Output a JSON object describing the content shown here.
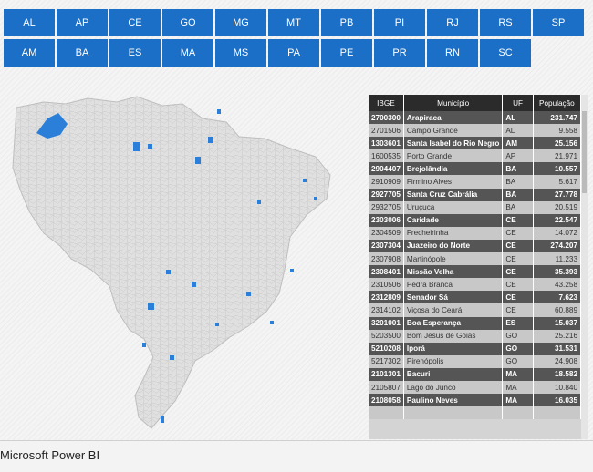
{
  "slicer": {
    "row1": [
      "AL",
      "AP",
      "CE",
      "GO",
      "MG",
      "MT",
      "PB",
      "PI",
      "RJ",
      "RS",
      "SP"
    ],
    "row2": [
      "AM",
      "BA",
      "ES",
      "MA",
      "MS",
      "PA",
      "PE",
      "PR",
      "RN",
      "SC"
    ]
  },
  "table": {
    "headers": [
      "IBGE",
      "Município",
      "UF",
      "População"
    ],
    "rows": [
      {
        "ibge": "2700300",
        "municipio": "Arapiraca",
        "uf": "AL",
        "pop": "231.747",
        "style": "dark"
      },
      {
        "ibge": "2701506",
        "municipio": "Campo Grande",
        "uf": "AL",
        "pop": "9.558",
        "style": "light"
      },
      {
        "ibge": "1303601",
        "municipio": "Santa Isabel do Rio Negro",
        "uf": "AM",
        "pop": "25.156",
        "style": "dark"
      },
      {
        "ibge": "1600535",
        "municipio": "Porto Grande",
        "uf": "AP",
        "pop": "21.971",
        "style": "light"
      },
      {
        "ibge": "2904407",
        "municipio": "Brejolândia",
        "uf": "BA",
        "pop": "10.557",
        "style": "dark"
      },
      {
        "ibge": "2910909",
        "municipio": "Firmino Alves",
        "uf": "BA",
        "pop": "5.617",
        "style": "light"
      },
      {
        "ibge": "2927705",
        "municipio": "Santa Cruz Cabrália",
        "uf": "BA",
        "pop": "27.778",
        "style": "dark"
      },
      {
        "ibge": "2932705",
        "municipio": "Uruçuca",
        "uf": "BA",
        "pop": "20.519",
        "style": "light"
      },
      {
        "ibge": "2303006",
        "municipio": "Caridade",
        "uf": "CE",
        "pop": "22.547",
        "style": "dark"
      },
      {
        "ibge": "2304509",
        "municipio": "Frecheirinha",
        "uf": "CE",
        "pop": "14.072",
        "style": "light"
      },
      {
        "ibge": "2307304",
        "municipio": "Juazeiro do Norte",
        "uf": "CE",
        "pop": "274.207",
        "style": "dark"
      },
      {
        "ibge": "2307908",
        "municipio": "Martinópole",
        "uf": "CE",
        "pop": "11.233",
        "style": "light"
      },
      {
        "ibge": "2308401",
        "municipio": "Missão Velha",
        "uf": "CE",
        "pop": "35.393",
        "style": "dark"
      },
      {
        "ibge": "2310506",
        "municipio": "Pedra Branca",
        "uf": "CE",
        "pop": "43.258",
        "style": "light"
      },
      {
        "ibge": "2312809",
        "municipio": "Senador Sá",
        "uf": "CE",
        "pop": "7.623",
        "style": "dark"
      },
      {
        "ibge": "2314102",
        "municipio": "Viçosa do Ceará",
        "uf": "CE",
        "pop": "60.889",
        "style": "light"
      },
      {
        "ibge": "3201001",
        "municipio": "Boa Esperança",
        "uf": "ES",
        "pop": "15.037",
        "style": "dark"
      },
      {
        "ibge": "5203500",
        "municipio": "Bom Jesus de Goiás",
        "uf": "GO",
        "pop": "25.216",
        "style": "light"
      },
      {
        "ibge": "5210208",
        "municipio": "Iporá",
        "uf": "GO",
        "pop": "31.531",
        "style": "dark"
      },
      {
        "ibge": "5217302",
        "municipio": "Pirenópolis",
        "uf": "GO",
        "pop": "24.908",
        "style": "light"
      },
      {
        "ibge": "2101301",
        "municipio": "Bacuri",
        "uf": "MA",
        "pop": "18.582",
        "style": "dark"
      },
      {
        "ibge": "2105807",
        "municipio": "Lago do Junco",
        "uf": "MA",
        "pop": "10.840",
        "style": "light"
      },
      {
        "ibge": "2108058",
        "municipio": "Paulino Neves",
        "uf": "MA",
        "pop": "16.035",
        "style": "dark"
      },
      {
        "ibge": "",
        "municipio": "",
        "uf": "",
        "pop": "",
        "style": "light"
      }
    ]
  },
  "footer": {
    "title": "Microsoft Power BI"
  },
  "colors": {
    "accent": "#1c6fc7",
    "highlight": "#2b7fd8",
    "map_fill": "#e0e0e0"
  }
}
